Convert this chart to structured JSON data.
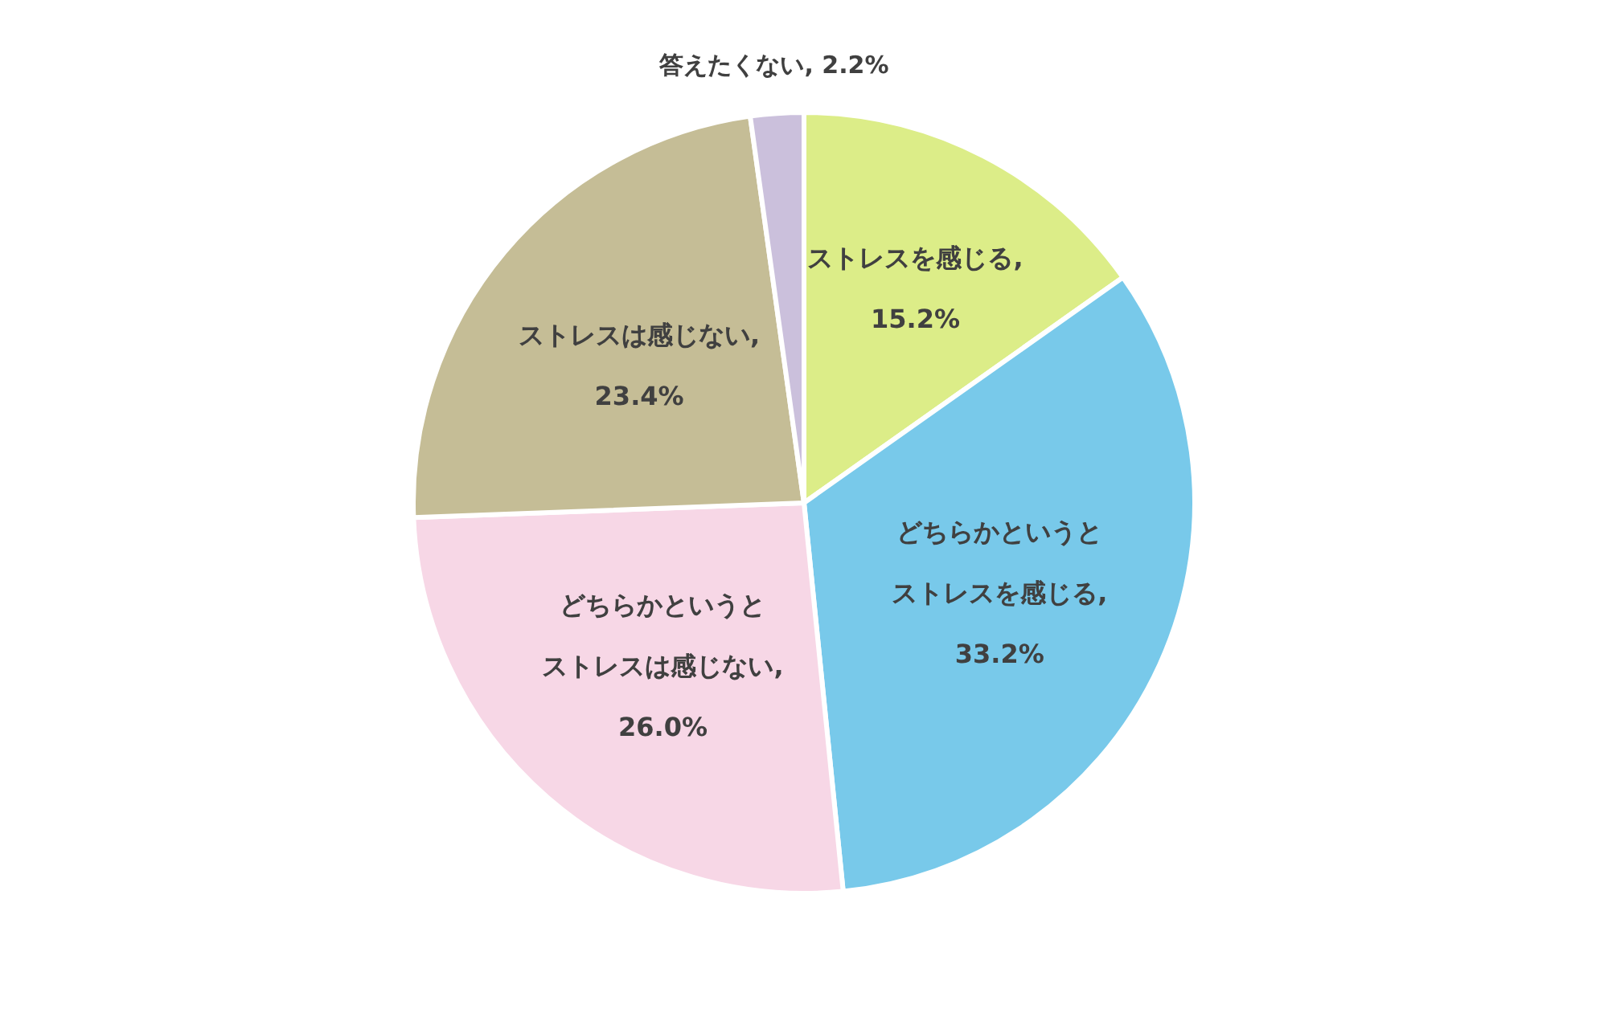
{
  "chart_data": {
    "type": "pie",
    "categories": [
      "ストレスを感じる",
      "どちらかというとストレスを感じる",
      "どちらかというとストレスは感じない",
      "ストレスは感じない",
      "答えたくない"
    ],
    "values": [
      15.2,
      33.2,
      26.0,
      23.4,
      2.2
    ],
    "value_labels": [
      ", 15.2%",
      ", 33.2%",
      ", 26.0%",
      ", 23.4%",
      ", 2.2%"
    ],
    "colors": [
      "#dced88",
      "#78c9ea",
      "#f7d7e6",
      "#c5bd96",
      "#cbc0dc"
    ]
  }
}
